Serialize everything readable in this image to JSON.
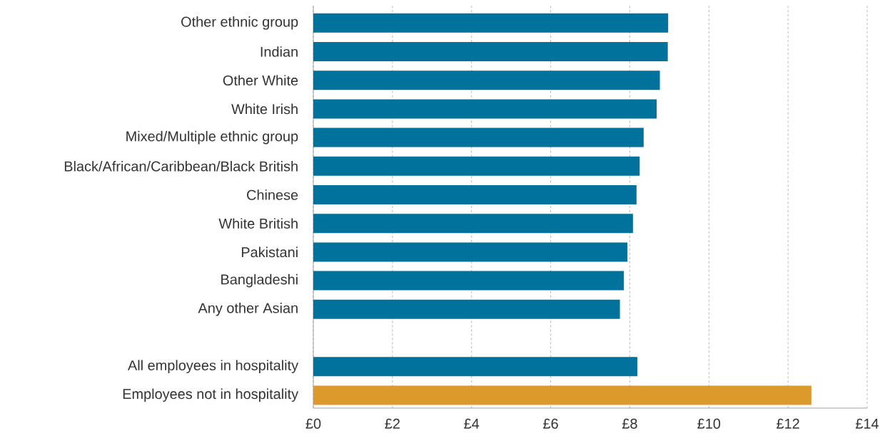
{
  "chart_data": {
    "type": "bar",
    "orientation": "horizontal",
    "categories": [
      "Other ethnic group",
      "Indian",
      "Other White",
      "White Irish",
      "Mixed/Multiple ethnic group",
      "Black/African/Caribbean/Black British",
      "Chinese",
      "White British",
      "Pakistani",
      "Bangladeshi",
      "Any other Asian",
      null,
      "All employees in hospitality",
      "Employees not in hospitality"
    ],
    "values": [
      8.97,
      8.96,
      8.76,
      8.68,
      8.35,
      8.25,
      8.17,
      8.08,
      7.94,
      7.85,
      7.75,
      null,
      8.19,
      12.59
    ],
    "colors": [
      "#00729c",
      "#00729c",
      "#00729c",
      "#00729c",
      "#00729c",
      "#00729c",
      "#00729c",
      "#00729c",
      "#00729c",
      "#00729c",
      "#00729c",
      "#00729c",
      "#00729c",
      "#dc9a2c"
    ],
    "xlim": [
      0,
      14
    ],
    "xticks": [
      {
        "value": 0,
        "label": "£0"
      },
      {
        "value": 2,
        "label": "£2"
      },
      {
        "value": 4,
        "label": "£4"
      },
      {
        "value": 6,
        "label": "£6"
      },
      {
        "value": 8,
        "label": "£8"
      },
      {
        "value": 10,
        "label": "£10"
      },
      {
        "value": 12,
        "label": "£12"
      },
      {
        "value": 14,
        "label": "£14"
      }
    ],
    "grid": "x"
  }
}
